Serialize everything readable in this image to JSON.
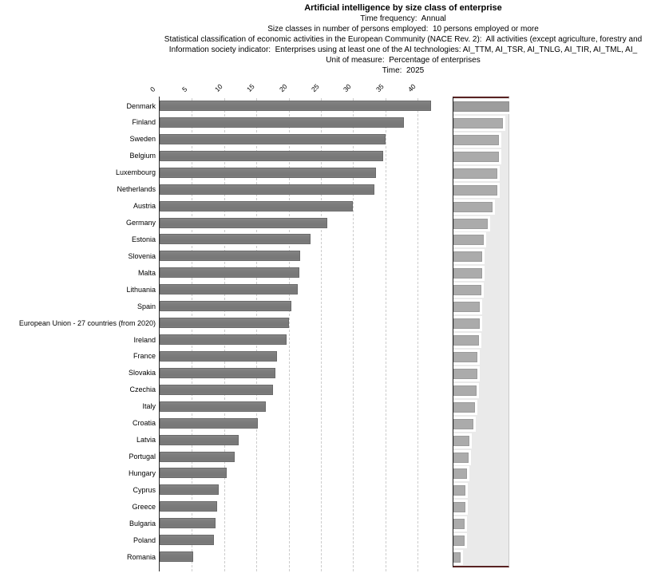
{
  "header": {
    "title": "Artificial intelligence by size class of enterprise",
    "lines": [
      "Time frequency:  Annual",
      "Size classes in number of persons employed:  10 persons employed or more",
      "Statistical classification of economic activities in the European Community (NACE Rev. 2):  All activities (except agriculture, forestry and",
      "Information society indicator:  Enterprises using at least one of the AI technologies: AI_TTM, AI_TSR, AI_TNLG, AI_TIR, AI_TML, AI_",
      "Unit of measure:  Percentage of enterprises",
      "Time:  2025"
    ]
  },
  "chart_data": {
    "type": "bar",
    "orientation": "horizontal",
    "title": "Artificial intelligence by size class of enterprise",
    "xlabel": "Percentage of enterprises",
    "ylabel": "",
    "time": "2025",
    "xlim": [
      0,
      42.5
    ],
    "x_ticks": [
      0,
      5,
      10,
      15,
      20,
      25,
      30,
      35,
      40
    ],
    "grid": "vertical-dashed",
    "legend": "none",
    "categories": [
      "Denmark",
      "Finland",
      "Sweden",
      "Belgium",
      "Luxembourg",
      "Netherlands",
      "Austria",
      "Germany",
      "Estonia",
      "Slovenia",
      "Malta",
      "Lithuania",
      "Spain",
      "European Union - 27 countries (from 2020)",
      "Ireland",
      "France",
      "Slovakia",
      "Czechia",
      "Italy",
      "Croatia",
      "Latvia",
      "Portugal",
      "Hungary",
      "Cyprus",
      "Greece",
      "Bulgaria",
      "Poland",
      "Romania"
    ],
    "values": [
      42.1,
      37.9,
      35.0,
      34.6,
      33.5,
      33.3,
      30.0,
      26.0,
      23.4,
      21.8,
      21.7,
      21.4,
      20.4,
      20.0,
      19.7,
      18.2,
      18.0,
      17.6,
      16.5,
      15.2,
      12.3,
      11.6,
      10.4,
      9.2,
      8.9,
      8.6,
      8.4,
      5.2
    ]
  },
  "minimap": {
    "role": "overview navigator of the same bar series",
    "max_value": 42.1,
    "bg_color": "#eaeaea",
    "bar_color": "#ababab",
    "highlight_bar_color": "#9d9d9d",
    "border_color": "#582222"
  },
  "colors": {
    "bar": "#7c7c7c",
    "bar_border": "#6a6a6a",
    "grid": "#cccccc",
    "axis": "#2a2a2a",
    "text": "#000000"
  }
}
